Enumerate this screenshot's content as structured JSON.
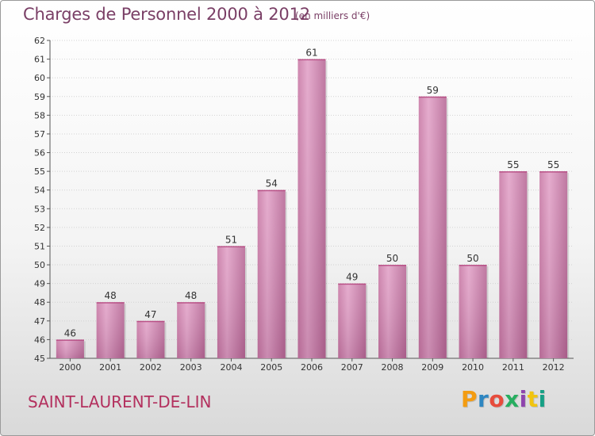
{
  "header": {
    "title": "Charges de Personnel 2000 à 2012",
    "subtitle": "(en milliers d'€)"
  },
  "footer": {
    "commune": "SAINT-LAURENT-DE-LIN",
    "logo": [
      "P",
      "r",
      "o",
      "x",
      "i",
      "t",
      "i"
    ],
    "logo_colors": [
      "#f39c12",
      "#2e86c1",
      "#e74c3c",
      "#27ae60",
      "#8e44ad",
      "#f1c40f",
      "#16a085"
    ]
  },
  "chart_data": {
    "type": "bar",
    "categories": [
      "2000",
      "2001",
      "2002",
      "2003",
      "2004",
      "2005",
      "2006",
      "2007",
      "2008",
      "2009",
      "2010",
      "2011",
      "2012"
    ],
    "values": [
      46,
      48,
      47,
      48,
      51,
      54,
      61,
      49,
      50,
      59,
      50,
      55,
      55
    ],
    "title": "Charges de Personnel 2000 à 2012",
    "subtitle": "(en milliers d'€)",
    "ylim": [
      45,
      62
    ],
    "yticks": [
      45,
      46,
      47,
      48,
      49,
      50,
      51,
      52,
      53,
      54,
      55,
      56,
      57,
      58,
      59,
      60,
      61,
      62
    ],
    "grid": true,
    "bar_color": "#d98ab8"
  }
}
